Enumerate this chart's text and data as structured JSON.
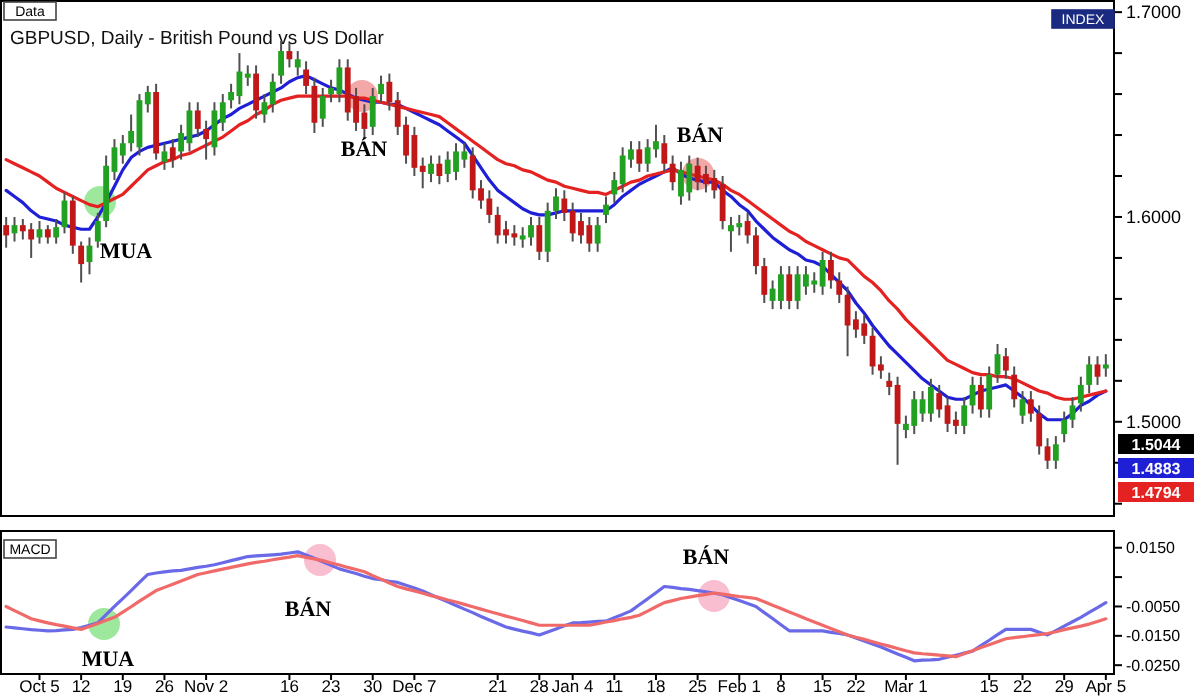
{
  "chart_data": [
    {
      "type": "candlestick",
      "title": "GBPUSD, Daily - British Pound vs US Dollar",
      "categories": [
        null,
        null,
        null,
        null,
        null,
        null,
        null,
        null,
        null,
        null,
        null,
        null,
        null,
        null,
        null,
        null,
        null,
        null,
        null,
        null,
        null,
        null,
        null,
        null,
        null,
        null,
        null,
        null,
        null,
        null,
        null,
        null,
        null,
        null,
        null,
        null,
        null,
        null,
        null,
        null,
        null,
        null,
        null,
        null,
        null,
        null,
        null,
        null,
        null,
        null,
        null,
        null,
        null,
        null,
        null,
        null,
        null,
        null,
        null,
        null,
        null,
        null,
        null,
        null,
        null,
        null,
        null,
        null,
        null,
        null,
        null,
        null,
        null,
        null,
        null,
        null,
        null,
        null,
        null,
        null,
        null,
        null,
        null,
        null,
        null,
        null,
        null,
        null,
        null,
        null,
        null,
        null,
        null,
        null,
        null,
        null,
        null,
        null,
        null,
        null,
        null,
        null,
        null,
        null,
        null,
        null,
        null,
        null,
        null,
        null,
        null,
        null,
        null,
        null,
        null,
        null,
        null,
        null,
        null,
        null,
        null,
        null,
        null,
        null,
        null,
        null,
        null,
        null,
        null,
        null,
        null,
        null,
        null
      ],
      "ohlc": [
        [
          1.596,
          1.6,
          1.585,
          1.591
        ],
        [
          1.592,
          1.6,
          1.588,
          1.596
        ],
        [
          1.596,
          1.599,
          1.589,
          1.593
        ],
        [
          1.594,
          1.597,
          1.58,
          1.589
        ],
        [
          1.59,
          1.598,
          1.587,
          1.594
        ],
        [
          1.594,
          1.596,
          1.587,
          1.59
        ],
        [
          1.59,
          1.599,
          1.587,
          1.595
        ],
        [
          1.595,
          1.612,
          1.592,
          1.608
        ],
        [
          1.608,
          1.61,
          1.582,
          1.586
        ],
        [
          1.586,
          1.588,
          1.568,
          1.577
        ],
        [
          1.578,
          1.59,
          1.572,
          1.586
        ],
        [
          1.588,
          1.602,
          1.585,
          1.598
        ],
        [
          1.598,
          1.63,
          1.595,
          1.625
        ],
        [
          1.622,
          1.638,
          1.618,
          1.634
        ],
        [
          1.63,
          1.64,
          1.626,
          1.636
        ],
        [
          1.636,
          1.65,
          1.632,
          1.642
        ],
        [
          1.634,
          1.66,
          1.63,
          1.657
        ],
        [
          1.655,
          1.664,
          1.651,
          1.661
        ],
        [
          1.661,
          1.665,
          1.628,
          1.631
        ],
        [
          1.627,
          1.636,
          1.623,
          1.632
        ],
        [
          1.634,
          1.638,
          1.624,
          1.628
        ],
        [
          1.632,
          1.645,
          1.628,
          1.641
        ],
        [
          1.636,
          1.656,
          1.632,
          1.652
        ],
        [
          1.652,
          1.656,
          1.639,
          1.643
        ],
        [
          1.643,
          1.647,
          1.628,
          1.638
        ],
        [
          1.634,
          1.656,
          1.63,
          1.652
        ],
        [
          1.646,
          1.66,
          1.642,
          1.656
        ],
        [
          1.657,
          1.665,
          1.653,
          1.661
        ],
        [
          1.659,
          1.68,
          1.655,
          1.671
        ],
        [
          1.668,
          1.674,
          1.664,
          1.67
        ],
        [
          1.67,
          1.674,
          1.648,
          1.652
        ],
        [
          1.65,
          1.66,
          1.646,
          1.656
        ],
        [
          1.655,
          1.67,
          1.651,
          1.666
        ],
        [
          1.669,
          1.686,
          1.665,
          1.681
        ],
        [
          1.681,
          1.685,
          1.673,
          1.677
        ],
        [
          1.673,
          1.681,
          1.669,
          1.677
        ],
        [
          1.672,
          1.676,
          1.66,
          1.664
        ],
        [
          1.664,
          1.668,
          1.641,
          1.646
        ],
        [
          1.648,
          1.663,
          1.644,
          1.659
        ],
        [
          1.66,
          1.667,
          1.656,
          1.663
        ],
        [
          1.66,
          1.677,
          1.656,
          1.673
        ],
        [
          1.673,
          1.677,
          1.647,
          1.651
        ],
        [
          1.659,
          1.663,
          1.642,
          1.646
        ],
        [
          1.651,
          1.655,
          1.638,
          1.643
        ],
        [
          1.644,
          1.663,
          1.64,
          1.659
        ],
        [
          1.66,
          1.669,
          1.656,
          1.665
        ],
        [
          1.666,
          1.67,
          1.652,
          1.656
        ],
        [
          1.657,
          1.661,
          1.64,
          1.644
        ],
        [
          1.645,
          1.649,
          1.626,
          1.63
        ],
        [
          1.64,
          1.644,
          1.62,
          1.624
        ],
        [
          1.625,
          1.629,
          1.614,
          1.622
        ],
        [
          1.621,
          1.63,
          1.617,
          1.626
        ],
        [
          1.626,
          1.63,
          1.616,
          1.62
        ],
        [
          1.621,
          1.632,
          1.617,
          1.628
        ],
        [
          1.622,
          1.636,
          1.618,
          1.632
        ],
        [
          1.628,
          1.636,
          1.624,
          1.632
        ],
        [
          1.63,
          1.634,
          1.609,
          1.613
        ],
        [
          1.614,
          1.618,
          1.604,
          1.608
        ],
        [
          1.609,
          1.613,
          1.597,
          1.601
        ],
        [
          1.601,
          1.605,
          1.587,
          1.591
        ],
        [
          1.594,
          1.598,
          1.587,
          1.591
        ],
        [
          1.592,
          1.596,
          1.586,
          1.59
        ],
        [
          1.589,
          1.595,
          1.585,
          1.591
        ],
        [
          1.59,
          1.6,
          1.586,
          1.596
        ],
        [
          1.596,
          1.6,
          1.579,
          1.583
        ],
        [
          1.583,
          1.607,
          1.578,
          1.603
        ],
        [
          1.603,
          1.614,
          1.599,
          1.61
        ],
        [
          1.609,
          1.613,
          1.598,
          1.602
        ],
        [
          1.603,
          1.607,
          1.588,
          1.592
        ],
        [
          1.598,
          1.602,
          1.587,
          1.591
        ],
        [
          1.596,
          1.6,
          1.583,
          1.587
        ],
        [
          1.587,
          1.6,
          1.583,
          1.596
        ],
        [
          1.601,
          1.61,
          1.597,
          1.606
        ],
        [
          1.611,
          1.622,
          1.607,
          1.618
        ],
        [
          1.616,
          1.634,
          1.612,
          1.63
        ],
        [
          1.628,
          1.637,
          1.624,
          1.633
        ],
        [
          1.633,
          1.637,
          1.622,
          1.626
        ],
        [
          1.626,
          1.638,
          1.622,
          1.634
        ],
        [
          1.633,
          1.645,
          1.629,
          1.637
        ],
        [
          1.636,
          1.64,
          1.622,
          1.626
        ],
        [
          1.626,
          1.63,
          1.613,
          1.617
        ],
        [
          1.61,
          1.627,
          1.606,
          1.623
        ],
        [
          1.612,
          1.63,
          1.608,
          1.626
        ],
        [
          1.625,
          1.629,
          1.613,
          1.617
        ],
        [
          1.621,
          1.625,
          1.612,
          1.616
        ],
        [
          1.619,
          1.623,
          1.609,
          1.613
        ],
        [
          1.616,
          1.62,
          1.594,
          1.598
        ],
        [
          1.593,
          1.6,
          1.583,
          1.596
        ],
        [
          1.595,
          1.601,
          1.591,
          1.597
        ],
        [
          1.598,
          1.602,
          1.587,
          1.591
        ],
        [
          1.591,
          1.595,
          1.572,
          1.576
        ],
        [
          1.576,
          1.58,
          1.558,
          1.562
        ],
        [
          1.559,
          1.569,
          1.555,
          1.565
        ],
        [
          1.559,
          1.576,
          1.555,
          1.572
        ],
        [
          1.572,
          1.576,
          1.555,
          1.559
        ],
        [
          1.559,
          1.576,
          1.555,
          1.572
        ],
        [
          1.566,
          1.576,
          1.562,
          1.572
        ],
        [
          1.567,
          1.573,
          1.563,
          1.569
        ],
        [
          1.566,
          1.583,
          1.562,
          1.579
        ],
        [
          1.579,
          1.583,
          1.565,
          1.569
        ],
        [
          1.569,
          1.573,
          1.558,
          1.562
        ],
        [
          1.562,
          1.566,
          1.532,
          1.547
        ],
        [
          1.55,
          1.554,
          1.541,
          1.545
        ],
        [
          1.548,
          1.552,
          1.538,
          1.542
        ],
        [
          1.542,
          1.546,
          1.523,
          1.527
        ],
        [
          1.528,
          1.532,
          1.521,
          1.525
        ],
        [
          1.52,
          1.524,
          1.513,
          1.517
        ],
        [
          1.518,
          1.522,
          1.479,
          1.499
        ],
        [
          1.496,
          1.503,
          1.492,
          1.499
        ],
        [
          1.498,
          1.515,
          1.494,
          1.511
        ],
        [
          1.504,
          1.515,
          1.5,
          1.511
        ],
        [
          1.504,
          1.521,
          1.5,
          1.517
        ],
        [
          1.514,
          1.518,
          1.502,
          1.506
        ],
        [
          1.508,
          1.512,
          1.495,
          1.499
        ],
        [
          1.501,
          1.505,
          1.494,
          1.498
        ],
        [
          1.498,
          1.512,
          1.494,
          1.508
        ],
        [
          1.508,
          1.522,
          1.504,
          1.518
        ],
        [
          1.518,
          1.522,
          1.502,
          1.506
        ],
        [
          1.506,
          1.527,
          1.502,
          1.523
        ],
        [
          1.523,
          1.538,
          1.519,
          1.533
        ],
        [
          1.532,
          1.536,
          1.521,
          1.525
        ],
        [
          1.523,
          1.527,
          1.507,
          1.511
        ],
        [
          1.503,
          1.515,
          1.499,
          1.511
        ],
        [
          1.511,
          1.515,
          1.5,
          1.504
        ],
        [
          1.504,
          1.508,
          1.484,
          1.488
        ],
        [
          1.488,
          1.492,
          1.477,
          1.481
        ],
        [
          1.481,
          1.493,
          1.477,
          1.489
        ],
        [
          1.494,
          1.505,
          1.49,
          1.501
        ],
        [
          1.501,
          1.512,
          1.497,
          1.508
        ],
        [
          1.509,
          1.522,
          1.505,
          1.518
        ],
        [
          1.518,
          1.532,
          1.514,
          1.528
        ],
        [
          1.528,
          1.532,
          1.518,
          1.522
        ],
        [
          1.526,
          1.533,
          1.522,
          1.528
        ]
      ],
      "series": [
        {
          "type": "line",
          "color": "#1f1fd6",
          "values": [
            1.613,
            1.61,
            1.607,
            1.603,
            1.6,
            1.599,
            1.598,
            1.596,
            1.595,
            1.594,
            1.594,
            1.6,
            1.607,
            1.615,
            1.623,
            1.629,
            1.632,
            1.634,
            1.635,
            1.636,
            1.637,
            1.638,
            1.639,
            1.64,
            1.642,
            1.645,
            1.648,
            1.65,
            1.653,
            1.655,
            1.657,
            1.659,
            1.661,
            1.663,
            1.666,
            1.668,
            1.669,
            1.667,
            1.665,
            1.663,
            1.662,
            1.66,
            1.658,
            1.657,
            1.656,
            1.656,
            1.655,
            1.655,
            1.653,
            1.651,
            1.649,
            1.647,
            1.645,
            1.642,
            1.639,
            1.636,
            1.63,
            1.624,
            1.618,
            1.613,
            1.61,
            1.607,
            1.604,
            1.602,
            1.601,
            1.601,
            1.602,
            1.603,
            1.603,
            1.603,
            1.603,
            1.603,
            1.603,
            1.606,
            1.61,
            1.613,
            1.616,
            1.618,
            1.62,
            1.622,
            1.624,
            1.621,
            1.619,
            1.618,
            1.617,
            1.617,
            1.613,
            1.61,
            1.606,
            1.603,
            1.598,
            1.594,
            1.59,
            1.587,
            1.584,
            1.582,
            1.579,
            1.578,
            1.576,
            1.572,
            1.568,
            1.564,
            1.558,
            1.553,
            1.547,
            1.542,
            1.537,
            1.533,
            1.529,
            1.525,
            1.521,
            1.518,
            1.515,
            1.512,
            1.511,
            1.511,
            1.513,
            1.515,
            1.516,
            1.517,
            1.518,
            1.515,
            1.512,
            1.508,
            1.504,
            1.501,
            1.501,
            1.501,
            1.504,
            1.508,
            1.51,
            1.513,
            1.515
          ]
        },
        {
          "type": "line",
          "color": "#e52222",
          "values": [
            1.628,
            1.626,
            1.624,
            1.622,
            1.62,
            1.617,
            1.614,
            1.612,
            1.61,
            1.608,
            1.606,
            1.605,
            1.607,
            1.609,
            1.611,
            1.615,
            1.619,
            1.623,
            1.625,
            1.627,
            1.628,
            1.63,
            1.631,
            1.633,
            1.635,
            1.637,
            1.639,
            1.642,
            1.645,
            1.647,
            1.65,
            1.652,
            1.655,
            1.657,
            1.658,
            1.659,
            1.659,
            1.659,
            1.659,
            1.659,
            1.659,
            1.659,
            1.658,
            1.658,
            1.657,
            1.656,
            1.655,
            1.654,
            1.653,
            1.652,
            1.651,
            1.65,
            1.649,
            1.646,
            1.643,
            1.64,
            1.637,
            1.634,
            1.631,
            1.628,
            1.626,
            1.625,
            1.623,
            1.622,
            1.62,
            1.618,
            1.617,
            1.615,
            1.614,
            1.613,
            1.612,
            1.612,
            1.611,
            1.613,
            1.615,
            1.617,
            1.618,
            1.62,
            1.621,
            1.622,
            1.623,
            1.622,
            1.621,
            1.62,
            1.619,
            1.618,
            1.616,
            1.613,
            1.611,
            1.608,
            1.605,
            1.602,
            1.599,
            1.596,
            1.593,
            1.591,
            1.588,
            1.586,
            1.584,
            1.582,
            1.58,
            1.579,
            1.575,
            1.571,
            1.568,
            1.564,
            1.559,
            1.555,
            1.55,
            1.546,
            1.542,
            1.538,
            1.534,
            1.53,
            1.528,
            1.526,
            1.524,
            1.523,
            1.523,
            1.522,
            1.522,
            1.521,
            1.519,
            1.517,
            1.515,
            1.514,
            1.512,
            1.511,
            1.511,
            1.512,
            1.513,
            1.514,
            1.515
          ]
        }
      ],
      "ylim": [
        1.454,
        1.703
      ],
      "yticks": [
        {
          "value": 1.46,
          "label": null
        },
        {
          "value": 1.48,
          "label": null
        },
        {
          "value": 1.5,
          "label": "1.5000"
        },
        {
          "value": 1.52,
          "label": null
        },
        {
          "value": 1.54,
          "label": null
        },
        {
          "value": 1.56,
          "label": null
        },
        {
          "value": 1.58,
          "label": null
        },
        {
          "value": 1.6,
          "label": "1.6000"
        },
        {
          "value": 1.62,
          "label": null
        },
        {
          "value": 1.64,
          "label": null
        },
        {
          "value": 1.66,
          "label": null
        },
        {
          "value": 1.68,
          "label": null
        },
        {
          "value": 1.7,
          "label": "1.7000"
        }
      ],
      "tick_labels": "y",
      "annotations": [
        "Data",
        "MUA",
        "BÁN",
        "BÁN",
        "INDEX",
        "1.5044",
        "1.4883",
        "1.4794"
      ]
    },
    {
      "type": "line",
      "categories": [
        null,
        null,
        null,
        null,
        "Oct 5",
        null,
        null,
        null,
        null,
        "12",
        null,
        null,
        null,
        null,
        "19",
        null,
        null,
        null,
        null,
        "26",
        null,
        null,
        null,
        null,
        "Nov 2",
        null,
        null,
        null,
        null,
        null,
        null,
        null,
        null,
        null,
        "16",
        null,
        null,
        null,
        null,
        "23",
        null,
        null,
        null,
        null,
        "30",
        null,
        null,
        null,
        null,
        "Dec 7",
        null,
        null,
        null,
        null,
        null,
        null,
        null,
        null,
        null,
        "21",
        null,
        null,
        null,
        null,
        "28",
        null,
        null,
        null,
        "Jan 4",
        null,
        null,
        null,
        null,
        "11",
        null,
        null,
        null,
        null,
        "18",
        null,
        null,
        null,
        null,
        "25",
        null,
        null,
        null,
        null,
        "Feb 1",
        null,
        null,
        null,
        null,
        "8",
        null,
        null,
        null,
        null,
        "15",
        null,
        null,
        null,
        "22",
        null,
        null,
        null,
        null,
        null,
        "Mar 1",
        null,
        null,
        null,
        null,
        null,
        null,
        null,
        null,
        null,
        "15",
        null,
        null,
        null,
        "22",
        null,
        null,
        null,
        null,
        "29",
        null,
        null,
        null,
        null,
        "Apr 5"
      ],
      "series": [
        {
          "color": "#6a6ae8",
          "values": [
            -0.012,
            -0.0123,
            -0.0126,
            -0.0129,
            -0.0131,
            -0.0133,
            -0.0132,
            -0.013,
            -0.0128,
            -0.0122,
            -0.0114,
            -0.0106,
            -0.0078,
            -0.005,
            -0.0023,
            0.0004,
            0.0032,
            0.0059,
            0.0064,
            0.0068,
            0.0071,
            0.0073,
            0.0078,
            0.0083,
            0.0087,
            0.0092,
            0.0099,
            0.0106,
            0.0113,
            0.012,
            0.0122,
            0.0124,
            0.0126,
            0.0128,
            0.0132,
            0.0136,
            0.0125,
            0.0114,
            0.0102,
            0.009,
            0.0078,
            0.007,
            0.0062,
            0.0053,
            0.0045,
            0.0041,
            0.0036,
            0.0032,
            0.0022,
            0.0013,
            0.0003,
            -0.001,
            -0.0022,
            -0.0034,
            -0.0047,
            -0.0059,
            -0.0071,
            -0.0084,
            -0.0096,
            -0.0108,
            -0.012,
            -0.0127,
            -0.0134,
            -0.014,
            -0.0147,
            -0.0137,
            -0.0127,
            -0.0116,
            -0.0106,
            -0.0105,
            -0.0103,
            -0.0101,
            -0.01,
            -0.0088,
            -0.0077,
            -0.0065,
            -0.0044,
            -0.0024,
            -0.0003,
            0.0018,
            0.0015,
            0.0011,
            0.0008,
            0.0004,
            0.0,
            -0.0005,
            -0.001,
            -0.002,
            -0.003,
            -0.004,
            -0.005,
            -0.0071,
            -0.0091,
            -0.0112,
            -0.0133,
            -0.0133,
            -0.0133,
            -0.0133,
            -0.0133,
            -0.0138,
            -0.0142,
            -0.0147,
            -0.0157,
            -0.0168,
            -0.0178,
            -0.0188,
            -0.02,
            -0.0212,
            -0.0223,
            -0.0235,
            -0.0233,
            -0.0232,
            -0.023,
            -0.0223,
            -0.0216,
            -0.0209,
            -0.0202,
            -0.0183,
            -0.0165,
            -0.0146,
            -0.0128,
            -0.0128,
            -0.0128,
            -0.0128,
            -0.0138,
            -0.0147,
            -0.0132,
            -0.0117,
            -0.0102,
            -0.0087,
            -0.007,
            -0.0054,
            -0.0037
          ]
        },
        {
          "color": "#f06a6a",
          "values": [
            -0.005,
            -0.0064,
            -0.0078,
            -0.0092,
            -0.0099,
            -0.0106,
            -0.0112,
            -0.0117,
            -0.0123,
            -0.0128,
            -0.0118,
            -0.0108,
            -0.0097,
            -0.0087,
            -0.0069,
            -0.0051,
            -0.0032,
            -0.0014,
            0.0004,
            0.0015,
            0.0026,
            0.0037,
            0.0048,
            0.0059,
            0.0065,
            0.0071,
            0.0077,
            0.0083,
            0.0089,
            0.0095,
            0.01,
            0.0104,
            0.0109,
            0.0114,
            0.0118,
            0.0123,
            0.0117,
            0.0112,
            0.0106,
            0.0098,
            0.0091,
            0.0083,
            0.0076,
            0.0068,
            0.0055,
            0.0043,
            0.003,
            0.0018,
            0.001,
            0.0003,
            -0.0005,
            -0.0013,
            -0.002,
            -0.0028,
            -0.0035,
            -0.0043,
            -0.0051,
            -0.0059,
            -0.0067,
            -0.0075,
            -0.0083,
            -0.009,
            -0.0098,
            -0.0106,
            -0.0114,
            -0.0114,
            -0.0114,
            -0.0114,
            -0.0114,
            -0.0114,
            -0.0114,
            -0.0109,
            -0.0103,
            -0.0098,
            -0.0092,
            -0.0087,
            -0.008,
            -0.0066,
            -0.0051,
            -0.0037,
            -0.003,
            -0.0023,
            -0.0018,
            -0.0013,
            -0.0009,
            -0.0004,
            -0.0008,
            -0.0012,
            -0.0016,
            -0.0019,
            -0.0023,
            -0.0034,
            -0.0046,
            -0.0057,
            -0.0069,
            -0.008,
            -0.0092,
            -0.0103,
            -0.0114,
            -0.0125,
            -0.0136,
            -0.0147,
            -0.0155,
            -0.0162,
            -0.017,
            -0.0178,
            -0.0185,
            -0.0193,
            -0.0201,
            -0.0208,
            -0.0211,
            -0.0213,
            -0.0216,
            -0.0218,
            -0.0221,
            -0.0211,
            -0.0201,
            -0.019,
            -0.018,
            -0.017,
            -0.016,
            -0.0156,
            -0.0153,
            -0.0149,
            -0.0146,
            -0.0142,
            -0.0136,
            -0.0129,
            -0.0123,
            -0.0117,
            -0.011,
            -0.0101,
            -0.0092
          ]
        }
      ],
      "ylim": [
        -0.028,
        0.019
      ],
      "yticks": [
        {
          "value": 0.015,
          "label": "0.0150"
        },
        {
          "value": 0.005,
          "label": null
        },
        {
          "value": -0.005,
          "label": "-0.0050"
        },
        {
          "value": -0.015,
          "label": "-0.0150"
        },
        {
          "value": -0.025,
          "label": "-0.0250"
        }
      ],
      "annotations": [
        "MACD",
        "MUA",
        "BÁN",
        "BÁN"
      ]
    }
  ]
}
